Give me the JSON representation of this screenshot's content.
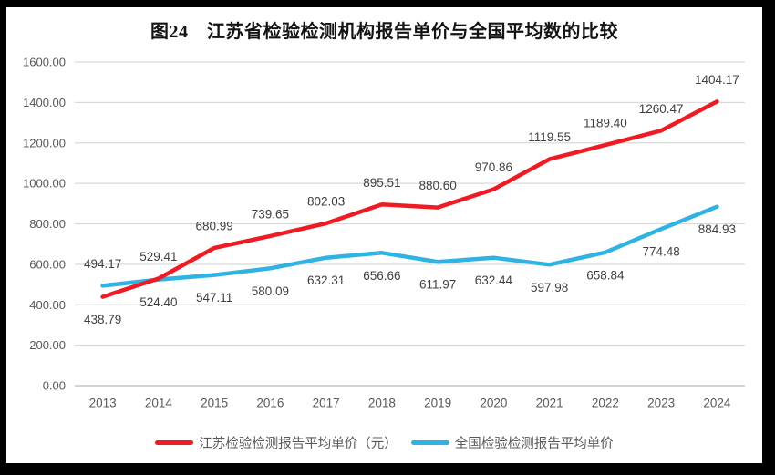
{
  "chart_data": {
    "type": "line",
    "title": "图24　江苏省检验检测机构报告单价与全国平均数的比较",
    "categories": [
      "2013",
      "2014",
      "2015",
      "2016",
      "2017",
      "2018",
      "2019",
      "2020",
      "2021",
      "2022",
      "2023",
      "2024"
    ],
    "series": [
      {
        "name": "江苏检验检测报告平均单价（元）",
        "color": "#ED1C24",
        "values": [
          438.79,
          529.41,
          680.99,
          739.65,
          802.03,
          895.51,
          880.6,
          970.86,
          1119.55,
          1189.4,
          1260.47,
          1404.17
        ],
        "label_positions": [
          "below",
          "above",
          "above",
          "above",
          "above",
          "above",
          "above",
          "above",
          "above",
          "above",
          "above",
          "above"
        ]
      },
      {
        "name": "全国检验检测报告平均单价",
        "color": "#2FB3E3",
        "values": [
          494.17,
          524.4,
          547.11,
          580.09,
          632.31,
          656.66,
          611.97,
          632.44,
          597.98,
          658.84,
          774.48,
          884.93
        ],
        "label_positions": [
          "above",
          "below",
          "below",
          "below",
          "below",
          "below",
          "below",
          "below",
          "below",
          "below",
          "below",
          "below"
        ]
      }
    ],
    "ylim": [
      0,
      1600
    ],
    "ytick_step": 200,
    "ytick_labels": [
      "0.00",
      "200.00",
      "400.00",
      "600.00",
      "800.00",
      "1000.00",
      "1200.00",
      "1400.00",
      "1600.00"
    ],
    "xlabel": "",
    "ylabel": "",
    "grid": true,
    "legend_position": "bottom",
    "colors": {
      "gridline": "#d9d9d9",
      "axis_line": "#c3c3c3",
      "tick_label": "#595959",
      "data_label": "#3f3f3f"
    }
  }
}
